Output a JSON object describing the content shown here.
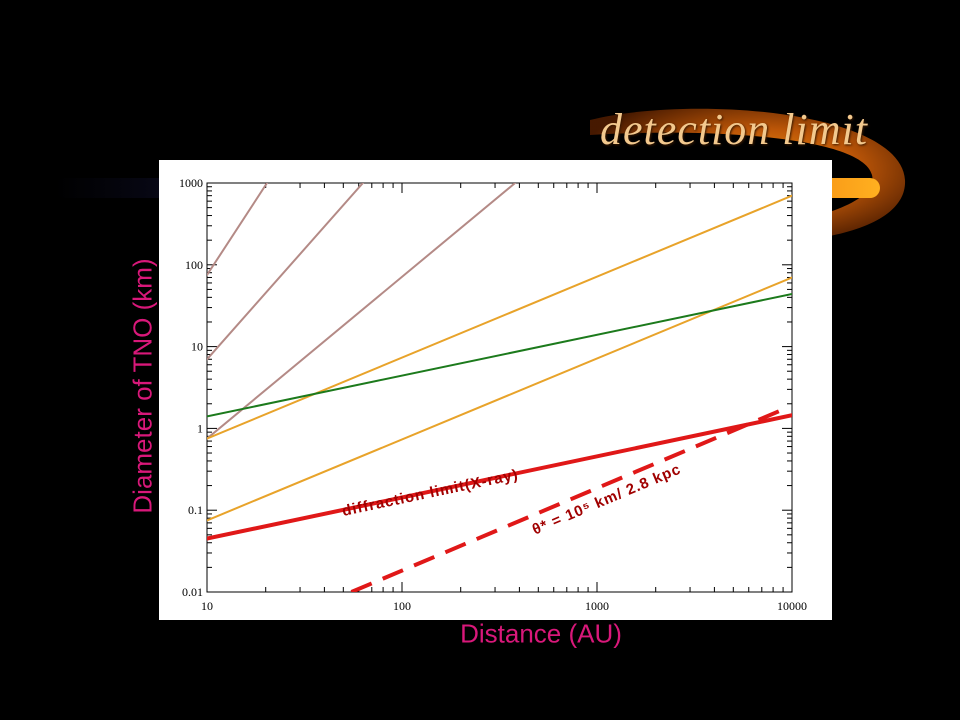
{
  "slide": {
    "title": "detection limit"
  },
  "chart_data": {
    "type": "line",
    "title": "",
    "xlabel": "Distance (AU)",
    "ylabel": "Diameter of TNO (km)",
    "xscale": "log",
    "yscale": "log",
    "xlim": [
      10,
      10000
    ],
    "ylim": [
      0.01,
      1000
    ],
    "xticks": [
      "10",
      "100",
      "1000",
      "10000"
    ],
    "yticks": [
      "0.01",
      "0.1",
      "1",
      "10",
      "100",
      "1000"
    ],
    "grid": false,
    "legend": "none",
    "series": [
      {
        "x": [
          10,
          20.3
        ],
        "y": [
          75,
          1000
        ],
        "color": "#b48a86",
        "style": "solid"
      },
      {
        "x": [
          10,
          63
        ],
        "y": [
          7,
          1000
        ],
        "color": "#b48a86",
        "style": "solid"
      },
      {
        "x": [
          10,
          380
        ],
        "y": [
          0.75,
          1000
        ],
        "color": "#b48a86",
        "style": "solid"
      },
      {
        "x": [
          10,
          10000
        ],
        "y": [
          0.75,
          700
        ],
        "color": "#e8a32a",
        "style": "solid"
      },
      {
        "x": [
          10,
          10000
        ],
        "y": [
          0.075,
          70
        ],
        "color": "#e8a32a",
        "style": "solid"
      },
      {
        "x": [
          10,
          10000
        ],
        "y": [
          1.4,
          44
        ],
        "color": "#1c7a1c",
        "style": "solid"
      },
      {
        "name": "diffraction limit(X-ray)",
        "x": [
          10,
          10000
        ],
        "y": [
          0.045,
          1.45
        ],
        "color": "#e01818",
        "style": "thick"
      },
      {
        "name": "θ* = 10^5 km/ 2.8 kpc",
        "x": [
          55,
          9000
        ],
        "y": [
          0.01,
          1.7
        ],
        "color": "#e01818",
        "style": "dashed"
      }
    ],
    "annotations": [
      {
        "text": "diffraction limit(X-ray)",
        "x": 50,
        "y": 0.085,
        "color": "#a00000"
      },
      {
        "text": "θ* = 10⁵ km/ 2.8 kpc",
        "x": 480,
        "y": 0.05,
        "color": "#a00000"
      }
    ]
  }
}
